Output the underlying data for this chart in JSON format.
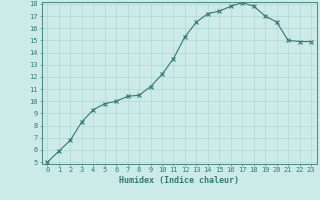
{
  "x": [
    0,
    1,
    2,
    3,
    4,
    5,
    6,
    7,
    8,
    9,
    10,
    11,
    12,
    13,
    14,
    15,
    16,
    17,
    18,
    19,
    20,
    21,
    22,
    23
  ],
  "y": [
    5.0,
    5.9,
    6.8,
    8.3,
    9.3,
    9.8,
    10.0,
    10.4,
    10.5,
    11.2,
    12.2,
    13.5,
    15.3,
    16.5,
    17.2,
    17.4,
    17.8,
    18.1,
    17.8,
    17.0,
    16.5,
    15.0,
    14.9,
    14.9
  ],
  "line_color": "#2e7d6e",
  "marker": "x",
  "marker_size": 2.5,
  "marker_lw": 0.8,
  "line_width": 0.8,
  "bg_color": "#cceae7",
  "grid_color": "#aed4d0",
  "xlabel": "Humidex (Indice chaleur)",
  "ylim": [
    5,
    18
  ],
  "xlim": [
    -0.5,
    23.5
  ],
  "yticks": [
    5,
    6,
    7,
    8,
    9,
    10,
    11,
    12,
    13,
    14,
    15,
    16,
    17,
    18
  ],
  "xticks": [
    0,
    1,
    2,
    3,
    4,
    5,
    6,
    7,
    8,
    9,
    10,
    11,
    12,
    13,
    14,
    15,
    16,
    17,
    18,
    19,
    20,
    21,
    22,
    23
  ],
  "xtick_labels": [
    "0",
    "1",
    "2",
    "3",
    "4",
    "5",
    "6",
    "7",
    "8",
    "9",
    "10",
    "11",
    "12",
    "13",
    "14",
    "15",
    "16",
    "17",
    "18",
    "19",
    "20",
    "21",
    "22",
    "23"
  ],
  "spine_color": "#2e7d6e",
  "tick_color": "#2e7d6e",
  "label_color": "#2e7d6e",
  "tick_fontsize": 5.0,
  "xlabel_fontsize": 6.0
}
